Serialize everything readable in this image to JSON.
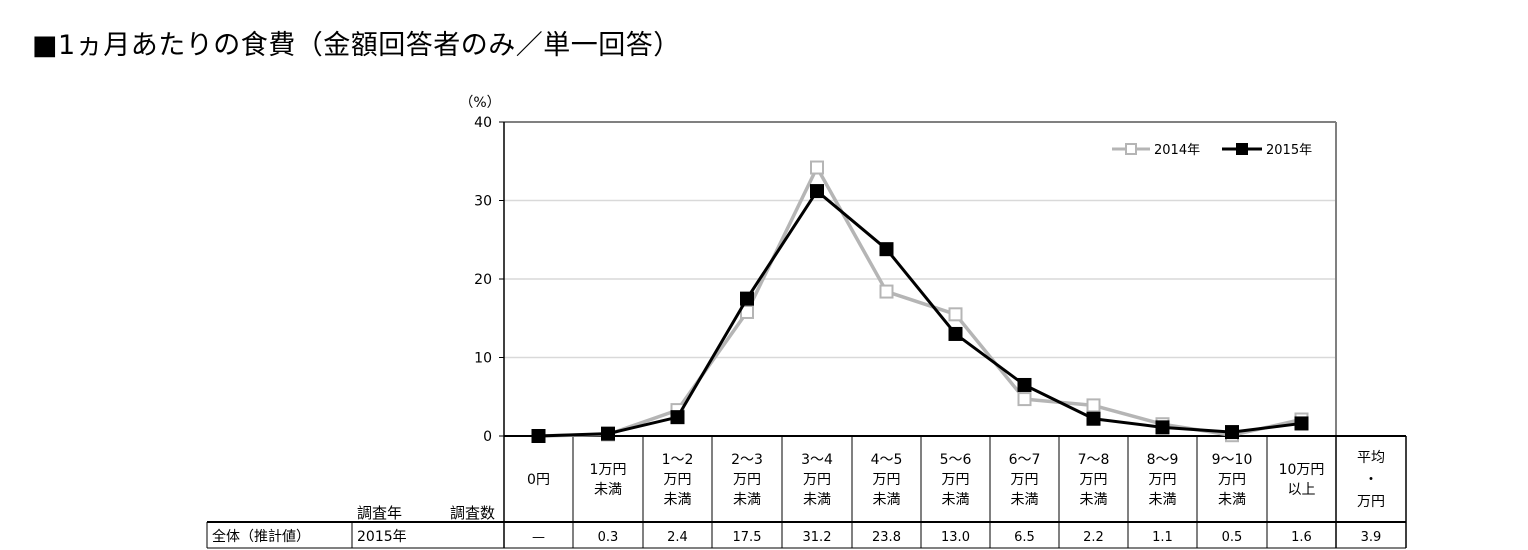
{
  "page_title": "■1ヵ月あたりの食費（金額回答者のみ／単一回答）",
  "chart_data": {
    "type": "line",
    "ylabel": "（%）",
    "ylim": [
      0,
      40
    ],
    "yticks": [
      0,
      10,
      20,
      30,
      40
    ],
    "categories": [
      "0円",
      "1万円\n未満",
      "1～2\n万円\n未満",
      "2～3\n万円\n未満",
      "3～4\n万円\n未満",
      "4～5\n万円\n未満",
      "5～6\n万円\n未満",
      "6～7\n万円\n未満",
      "7～8\n万円\n未満",
      "8～9\n万円\n未満",
      "9～10\n万円\n未満",
      "10万円\n以上"
    ],
    "series": [
      {
        "name": "2014年",
        "color": "#b5b5b5",
        "marker": "hollow-square",
        "values": [
          0,
          0.2,
          3.3,
          15.8,
          34.2,
          18.4,
          15.5,
          4.7,
          3.9,
          1.5,
          0.1,
          2.1
        ]
      },
      {
        "name": "2015年",
        "color": "#000000",
        "marker": "filled-square",
        "values": [
          0,
          0.3,
          2.4,
          17.5,
          31.2,
          23.8,
          13.0,
          6.5,
          2.2,
          1.1,
          0.5,
          1.6
        ]
      }
    ],
    "grid": "horizontal",
    "legend_position": "top-right"
  },
  "table": {
    "col_header_year": "調査年",
    "col_header_count": "調査数",
    "avg_header": "平均\n・\n万円",
    "row_label": "全体（推計値）",
    "row_year": "2015年",
    "row_count": "",
    "values": [
      "—",
      "0.3",
      "2.4",
      "17.5",
      "31.2",
      "23.8",
      "13.0",
      "6.5",
      "2.2",
      "1.1",
      "0.5",
      "1.6"
    ],
    "avg_value": "3.9"
  }
}
